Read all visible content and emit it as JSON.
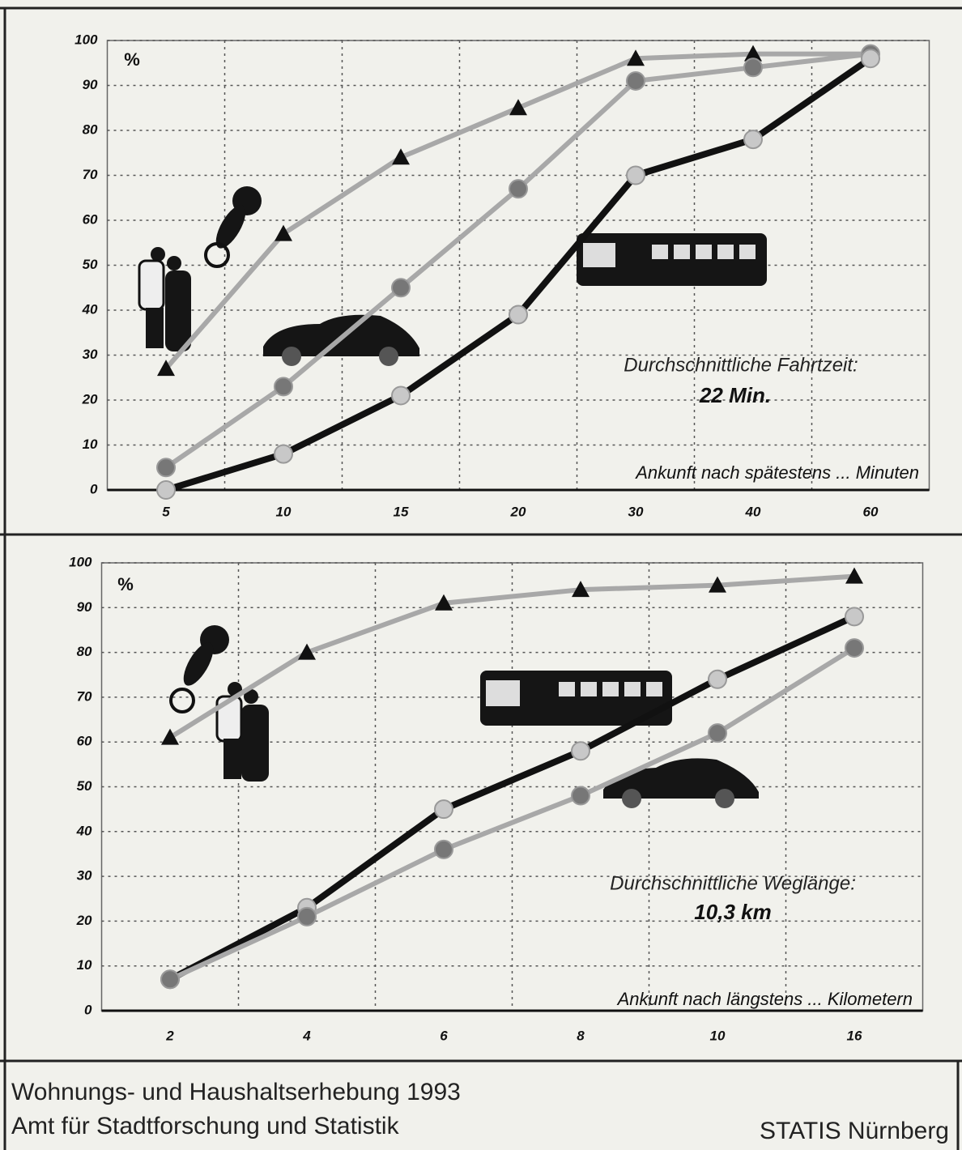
{
  "chart_data": [
    {
      "type": "line",
      "y_unit": "%",
      "annotation": "Durchschnittliche Fahrtzeit:",
      "annotation_value": "22 Min.",
      "x_note": "Ankunft nach spätestens ... Minuten",
      "categories": [
        "5",
        "10",
        "15",
        "20",
        "30",
        "40",
        "60"
      ],
      "series": [
        {
          "color": "#a8a8a8",
          "marker": "triangle",
          "marker_color": "#111",
          "values": [
            27,
            57,
            74,
            85,
            96,
            97,
            97
          ]
        },
        {
          "color": "#a8a8a8",
          "marker": "circle",
          "marker_color": "#777",
          "values": [
            5,
            23,
            45,
            67,
            91,
            94,
            97
          ]
        },
        {
          "color": "#111",
          "marker": "circle",
          "marker_color": "#c8c8c8",
          "values": [
            0,
            8,
            21,
            39,
            70,
            78,
            96
          ]
        }
      ],
      "ylim": [
        0,
        100
      ],
      "yticks": [
        0,
        10,
        20,
        30,
        40,
        50,
        60,
        70,
        80,
        90,
        100
      ],
      "grid": true
    },
    {
      "type": "line",
      "y_unit": "%",
      "annotation": "Durchschnittliche Weglänge:",
      "annotation_value": "10,3 km",
      "x_note": "Ankunft nach längstens ... Kilometern",
      "categories": [
        "2",
        "4",
        "6",
        "8",
        "10",
        "16"
      ],
      "series": [
        {
          "color": "#a8a8a8",
          "marker": "triangle",
          "marker_color": "#111",
          "values": [
            61,
            80,
            91,
            94,
            95,
            97
          ]
        },
        {
          "color": "#111",
          "marker": "circle",
          "marker_color": "#c8c8c8",
          "values": [
            7,
            23,
            45,
            58,
            74,
            88
          ]
        },
        {
          "color": "#a8a8a8",
          "marker": "circle",
          "marker_color": "#777",
          "values": [
            7,
            21,
            36,
            48,
            62,
            81
          ]
        }
      ],
      "ylim": [
        0,
        100
      ],
      "yticks": [
        0,
        10,
        20,
        30,
        40,
        50,
        60,
        70,
        80,
        90,
        100
      ],
      "grid": true
    }
  ],
  "footer": {
    "lines": [
      "Wohnungs- und Haushaltserhebung 1993",
      "Amt für Stadtforschung und Statistik"
    ],
    "right": "STATIS Nürnberg"
  }
}
